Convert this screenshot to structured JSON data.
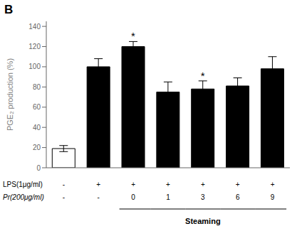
{
  "chart_data": {
    "type": "bar",
    "title": "B",
    "ylabel": "PGE₂ production (%)",
    "categories": [
      null,
      null,
      null,
      null,
      null,
      null,
      null
    ],
    "values": [
      19,
      100,
      120,
      75,
      78,
      81,
      98
    ],
    "errors": [
      3,
      8,
      5,
      10,
      8,
      8,
      12
    ],
    "colors": [
      "white",
      "black",
      "black",
      "black",
      "black",
      "black",
      "black"
    ],
    "asterisks": [
      null,
      null,
      "*",
      null,
      "*",
      null,
      null
    ],
    "ylim": [
      0,
      145
    ],
    "yticks": [
      0,
      20,
      40,
      60,
      80,
      100,
      120,
      140
    ],
    "grid": false,
    "tick_labels": "y",
    "annotations": [
      {
        "text": "LPS(1μg/ml)",
        "labels": [
          "-",
          "+",
          "+",
          "+",
          "+",
          "+",
          "+"
        ]
      },
      {
        "text": "Pr(200μg/ml)",
        "labels": [
          "-",
          "-",
          "0",
          "1",
          "3",
          "6",
          "9"
        ]
      }
    ],
    "bracket": {
      "text": "Steaming",
      "from": 2,
      "to": 6
    }
  }
}
